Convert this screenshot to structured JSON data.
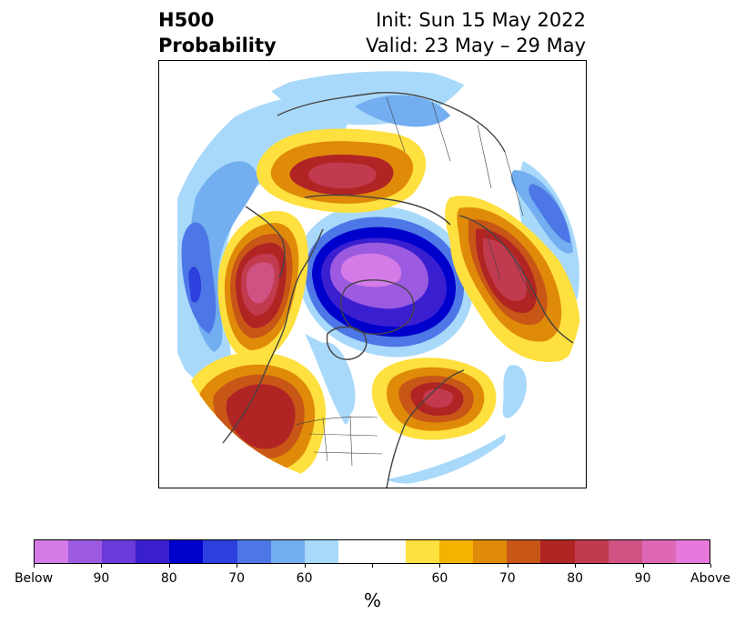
{
  "title": {
    "left_line1": "H500",
    "left_line2": "Probability",
    "init": "Init: Sun 15 May 2022",
    "valid": "Valid: 23 May – 29 May"
  },
  "colorbar": {
    "colors": [
      "#d57be8",
      "#9c5ae0",
      "#6c3ad8",
      "#3a1fd0",
      "#0000cc",
      "#2c40dd",
      "#4d77e6",
      "#72aef0",
      "#a9d9fa",
      "#ffffff",
      "#ffffff",
      "#fee03e",
      "#f4b301",
      "#e08a0a",
      "#c85617",
      "#b02424",
      "#c23a4e",
      "#cf5283",
      "#de67b6",
      "#e879dc"
    ],
    "tick_labels": [
      "Below",
      "90",
      "80",
      "70",
      "60",
      "",
      "60",
      "70",
      "80",
      "90",
      "Above"
    ],
    "unit": "%"
  },
  "palette": {
    "lb1": "#a9d9fa",
    "lb2": "#72aef0",
    "lb3": "#4d77e6",
    "lb4": "#2c40dd",
    "lb5": "#0000cc",
    "lb6": "#3a1fd0",
    "lb7": "#6c3ad8",
    "lb8": "#9c5ae0",
    "lb9": "#d57be8",
    "y1": "#fee03e",
    "y2": "#f4b301",
    "o1": "#e08a0a",
    "o2": "#c85617",
    "r1": "#b02424",
    "r2": "#c23a4e",
    "p1": "#cf5283",
    "p2": "#de67b6",
    "coast": "#444444"
  }
}
